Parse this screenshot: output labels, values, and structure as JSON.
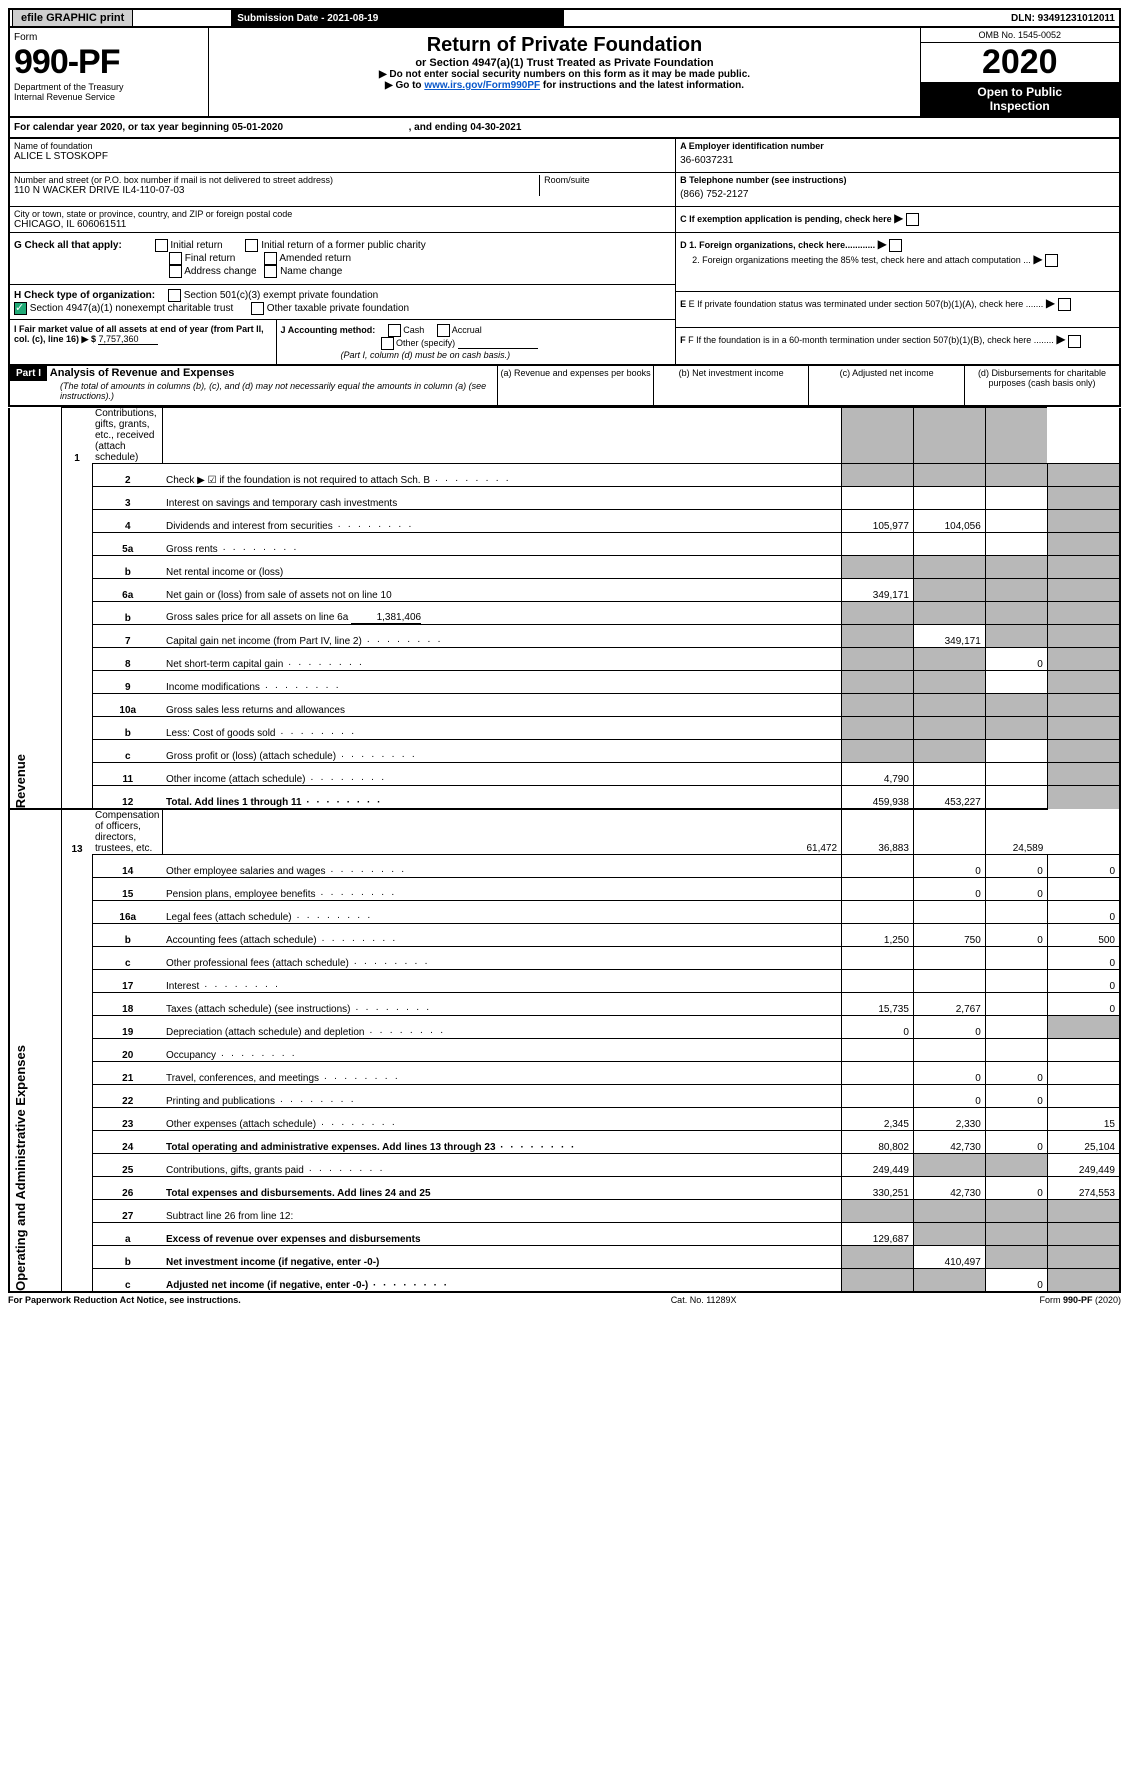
{
  "topbar": {
    "efile": "efile GRAPHIC print",
    "submission_label": "Submission Date - 2021-08-19",
    "dln_label": "DLN: 93491231012011"
  },
  "header": {
    "form_word": "Form",
    "form_num": "990-PF",
    "dept": "Department of the Treasury\nInternal Revenue Service",
    "title": "Return of Private Foundation",
    "subtitle": "or Section 4947(a)(1) Trust Treated as Private Foundation",
    "instr1": "▶ Do not enter social security numbers on this form as it may be made public.",
    "instr2_pre": "▶ Go to ",
    "instr2_link": "www.irs.gov/Form990PF",
    "instr2_post": " for instructions and the latest information.",
    "omb": "OMB No. 1545-0052",
    "year": "2020",
    "open": "Open to Public\nInspection"
  },
  "cal": {
    "line": "For calendar year 2020, or tax year beginning 05-01-2020",
    "ending": ", and ending 04-30-2021"
  },
  "id": {
    "name_label": "Name of foundation",
    "name": "ALICE L STOSKOPF",
    "addr_label": "Number and street (or P.O. box number if mail is not delivered to street address)",
    "addr": "110 N WACKER DRIVE IL4-110-07-03",
    "room_label": "Room/suite",
    "city_label": "City or town, state or province, country, and ZIP or foreign postal code",
    "city": "CHICAGO, IL  606061511",
    "ein_label": "A Employer identification number",
    "ein": "36-6037231",
    "phone_label": "B Telephone number (see instructions)",
    "phone": "(866) 752-2127",
    "c": "C If exemption application is pending, check here",
    "d1": "D 1. Foreign organizations, check here............",
    "d2": "2. Foreign organizations meeting the 85% test, check here and attach computation ...",
    "e": "E If private foundation status was terminated under section 507(b)(1)(A), check here .......",
    "f": "F If the foundation is in a 60-month termination under section 507(b)(1)(B), check here ........"
  },
  "g": {
    "label": "G Check all that apply:",
    "opts": [
      "Initial return",
      "Initial return of a former public charity",
      "Final return",
      "Amended return",
      "Address change",
      "Name change"
    ]
  },
  "h": {
    "label": "H Check type of organization:",
    "opt1": "Section 501(c)(3) exempt private foundation",
    "opt2": "Section 4947(a)(1) nonexempt charitable trust",
    "opt3": "Other taxable private foundation"
  },
  "i": {
    "label": "I Fair market value of all assets at end of year (from Part II, col. (c), line 16) ▶ $",
    "value": "7,757,360"
  },
  "j": {
    "label": "J Accounting method:",
    "cash": "Cash",
    "accrual": "Accrual",
    "other": "Other (specify)",
    "note": "(Part I, column (d) must be on cash basis.)"
  },
  "part1": {
    "label": "Part I",
    "title": "Analysis of Revenue and Expenses",
    "note": "(The total of amounts in columns (b), (c), and (d) may not necessarily equal the amounts in column (a) (see instructions).)",
    "col_a": "(a)   Revenue and expenses per books",
    "col_b": "(b)   Net investment income",
    "col_c": "(c)   Adjusted net income",
    "col_d": "(d)   Disbursements for charitable purposes (cash basis only)"
  },
  "sections": {
    "revenue": "Revenue",
    "expenses": "Operating and Administrative Expenses"
  },
  "lines": [
    {
      "n": "1",
      "l": "Contributions, gifts, grants, etc., received (attach schedule)",
      "a": "",
      "b": "g",
      "c": "g",
      "d": "g"
    },
    {
      "n": "2",
      "l": "Check ▶ ☑ if the foundation is not required to attach Sch. B",
      "a": "g",
      "b": "g",
      "c": "g",
      "d": "g",
      "dots": true
    },
    {
      "n": "3",
      "l": "Interest on savings and temporary cash investments",
      "a": "",
      "b": "",
      "c": "",
      "d": "g"
    },
    {
      "n": "4",
      "l": "Dividends and interest from securities",
      "a": "105,977",
      "b": "104,056",
      "c": "",
      "d": "g",
      "dots": true
    },
    {
      "n": "5a",
      "l": "Gross rents",
      "a": "",
      "b": "",
      "c": "",
      "d": "g",
      "dots": true
    },
    {
      "n": "b",
      "l": "Net rental income or (loss)",
      "a": "g",
      "b": "g",
      "c": "g",
      "d": "g",
      "blank": true
    },
    {
      "n": "6a",
      "l": "Net gain or (loss) from sale of assets not on line 10",
      "a": "349,171",
      "b": "g",
      "c": "g",
      "d": "g"
    },
    {
      "n": "b",
      "l": "Gross sales price for all assets on line 6a",
      "a": "g",
      "b": "g",
      "c": "g",
      "d": "g",
      "inline_val": "1,381,406"
    },
    {
      "n": "7",
      "l": "Capital gain net income (from Part IV, line 2)",
      "a": "g",
      "b": "349,171",
      "c": "g",
      "d": "g",
      "dots": true
    },
    {
      "n": "8",
      "l": "Net short-term capital gain",
      "a": "g",
      "b": "g",
      "c": "0",
      "d": "g",
      "dots": true
    },
    {
      "n": "9",
      "l": "Income modifications",
      "a": "g",
      "b": "g",
      "c": "",
      "d": "g",
      "dots": true
    },
    {
      "n": "10a",
      "l": "Gross sales less returns and allowances",
      "a": "g",
      "b": "g",
      "c": "g",
      "d": "g",
      "blank": true
    },
    {
      "n": "b",
      "l": "Less: Cost of goods sold",
      "a": "g",
      "b": "g",
      "c": "g",
      "d": "g",
      "blank": true,
      "dots": true
    },
    {
      "n": "c",
      "l": "Gross profit or (loss) (attach schedule)",
      "a": "g",
      "b": "g",
      "c": "",
      "d": "g",
      "dots": true
    },
    {
      "n": "11",
      "l": "Other income (attach schedule)",
      "a": "4,790",
      "b": "",
      "c": "",
      "d": "g",
      "dots": true
    },
    {
      "n": "12",
      "l": "Total. Add lines 1 through 11",
      "a": "459,938",
      "b": "453,227",
      "c": "",
      "d": "g",
      "bold": true,
      "dots": true
    }
  ],
  "exp_lines": [
    {
      "n": "13",
      "l": "Compensation of officers, directors, trustees, etc.",
      "a": "61,472",
      "b": "36,883",
      "c": "",
      "d": "24,589"
    },
    {
      "n": "14",
      "l": "Other employee salaries and wages",
      "a": "",
      "b": "0",
      "c": "0",
      "d": "0",
      "dots": true
    },
    {
      "n": "15",
      "l": "Pension plans, employee benefits",
      "a": "",
      "b": "0",
      "c": "0",
      "d": "",
      "dots": true
    },
    {
      "n": "16a",
      "l": "Legal fees (attach schedule)",
      "a": "",
      "b": "",
      "c": "",
      "d": "0",
      "dots": true
    },
    {
      "n": "b",
      "l": "Accounting fees (attach schedule)",
      "a": "1,250",
      "b": "750",
      "c": "0",
      "d": "500",
      "dots": true
    },
    {
      "n": "c",
      "l": "Other professional fees (attach schedule)",
      "a": "",
      "b": "",
      "c": "",
      "d": "0",
      "dots": true
    },
    {
      "n": "17",
      "l": "Interest",
      "a": "",
      "b": "",
      "c": "",
      "d": "0",
      "dots": true
    },
    {
      "n": "18",
      "l": "Taxes (attach schedule) (see instructions)",
      "a": "15,735",
      "b": "2,767",
      "c": "",
      "d": "0",
      "dots": true
    },
    {
      "n": "19",
      "l": "Depreciation (attach schedule) and depletion",
      "a": "0",
      "b": "0",
      "c": "",
      "d": "g",
      "dots": true
    },
    {
      "n": "20",
      "l": "Occupancy",
      "a": "",
      "b": "",
      "c": "",
      "d": "",
      "dots": true
    },
    {
      "n": "21",
      "l": "Travel, conferences, and meetings",
      "a": "",
      "b": "0",
      "c": "0",
      "d": "",
      "dots": true
    },
    {
      "n": "22",
      "l": "Printing and publications",
      "a": "",
      "b": "0",
      "c": "0",
      "d": "",
      "dots": true
    },
    {
      "n": "23",
      "l": "Other expenses (attach schedule)",
      "a": "2,345",
      "b": "2,330",
      "c": "",
      "d": "15",
      "dots": true
    },
    {
      "n": "24",
      "l": "Total operating and administrative expenses. Add lines 13 through 23",
      "a": "80,802",
      "b": "42,730",
      "c": "0",
      "d": "25,104",
      "bold": true,
      "dots": true
    },
    {
      "n": "25",
      "l": "Contributions, gifts, grants paid",
      "a": "249,449",
      "b": "g",
      "c": "g",
      "d": "249,449",
      "dots": true
    },
    {
      "n": "26",
      "l": "Total expenses and disbursements. Add lines 24 and 25",
      "a": "330,251",
      "b": "42,730",
      "c": "0",
      "d": "274,553",
      "bold": true
    },
    {
      "n": "27",
      "l": "Subtract line 26 from line 12:",
      "a": "g",
      "b": "g",
      "c": "g",
      "d": "g"
    },
    {
      "n": "a",
      "l": "Excess of revenue over expenses and disbursements",
      "a": "129,687",
      "b": "g",
      "c": "g",
      "d": "g",
      "bold": true
    },
    {
      "n": "b",
      "l": "Net investment income (if negative, enter -0-)",
      "a": "g",
      "b": "410,497",
      "c": "g",
      "d": "g",
      "bold": true
    },
    {
      "n": "c",
      "l": "Adjusted net income (if negative, enter -0-)",
      "a": "g",
      "b": "g",
      "c": "0",
      "d": "g",
      "bold": true,
      "dots": true
    }
  ],
  "footer": {
    "left": "For Paperwork Reduction Act Notice, see instructions.",
    "mid": "Cat. No. 11289X",
    "right": "Form 990-PF (2020)"
  }
}
